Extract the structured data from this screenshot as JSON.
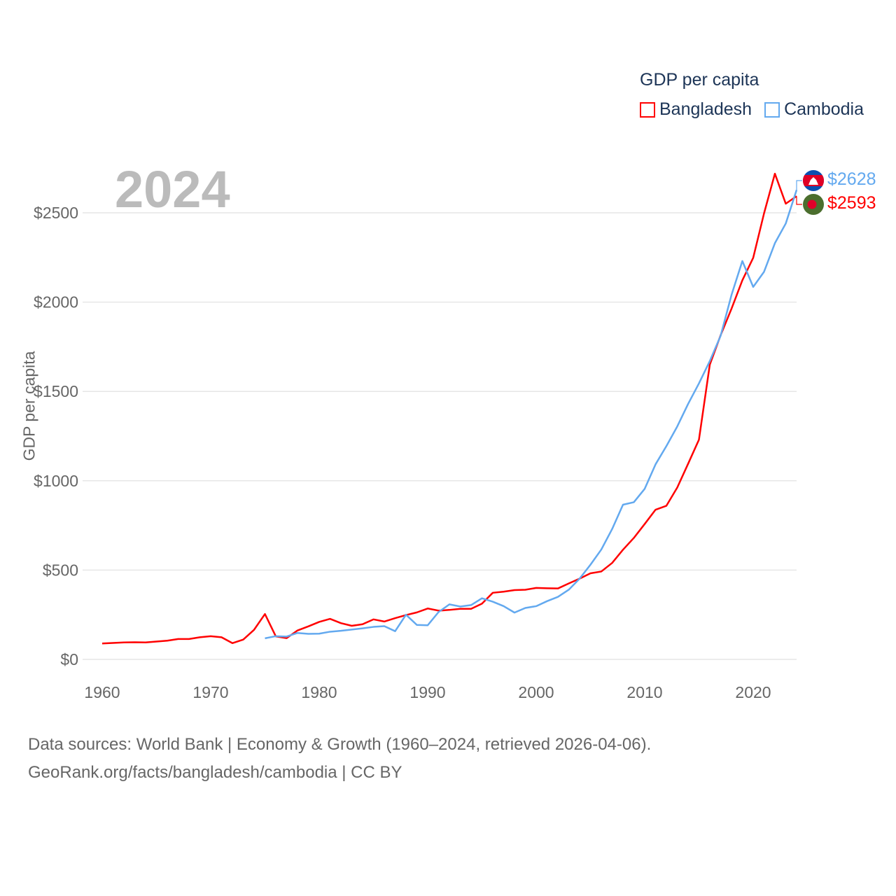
{
  "chart_data": {
    "type": "line",
    "title": "GDP per capita",
    "year_label": "2024",
    "ylabel": "GDP per capita",
    "xlabel": "",
    "xlim": [
      1960,
      2024
    ],
    "ylim": [
      0,
      2500
    ],
    "y_ticks": [
      "$0",
      "$500",
      "$1000",
      "$1500",
      "$2000",
      "$2500"
    ],
    "y_tick_values": [
      0,
      500,
      1000,
      1500,
      2000,
      2500
    ],
    "x_ticks": [
      "1960",
      "1970",
      "1980",
      "1990",
      "2000",
      "2010",
      "2020"
    ],
    "x_tick_values": [
      1960,
      1970,
      1980,
      1990,
      2000,
      2010,
      2020
    ],
    "grid": true,
    "legend_placement": "top-right",
    "series": [
      {
        "name": "Bangladesh",
        "color": "#ff0000",
        "start_year": 1960,
        "end_label": "$2593",
        "values": [
          89,
          92,
          95,
          96,
          95,
          100,
          105,
          114,
          114,
          124,
          130,
          124,
          91,
          111,
          166,
          254,
          129,
          119,
          162,
          185,
          210,
          227,
          203,
          188,
          197,
          224,
          212,
          231,
          248,
          263,
          285,
          273,
          277,
          283,
          283,
          312,
          373,
          379,
          388,
          390,
          400,
          398,
          397,
          425,
          452,
          482,
          492,
          540,
          614,
          680,
          758,
          838,
          860,
          962,
          1095,
          1230,
          1650,
          1815,
          1963,
          2122,
          2248,
          2497,
          2719,
          2551,
          2593
        ]
      },
      {
        "name": "Cambodia",
        "color": "#63a9ef",
        "start_year": 1975,
        "end_label": "$2628",
        "values": [
          118,
          130,
          128,
          148,
          143,
          144,
          155,
          160,
          167,
          174,
          182,
          186,
          158,
          250,
          193,
          191,
          265,
          308,
          296,
          304,
          342,
          323,
          298,
          262,
          288,
          298,
          326,
          350,
          390,
          452,
          530,
          615,
          730,
          866,
          880,
          955,
          1092,
          1194,
          1304,
          1430,
          1545,
          1670,
          1812,
          2040,
          2230,
          2085,
          2170,
          2330,
          2440,
          2628
        ]
      }
    ]
  },
  "footer": {
    "line1": "Data sources: World Bank | Economy & Growth (1960–2024, retrieved 2026-04-06).",
    "line2": "GeoRank.org/facts/bangladesh/cambodia | CC BY"
  }
}
